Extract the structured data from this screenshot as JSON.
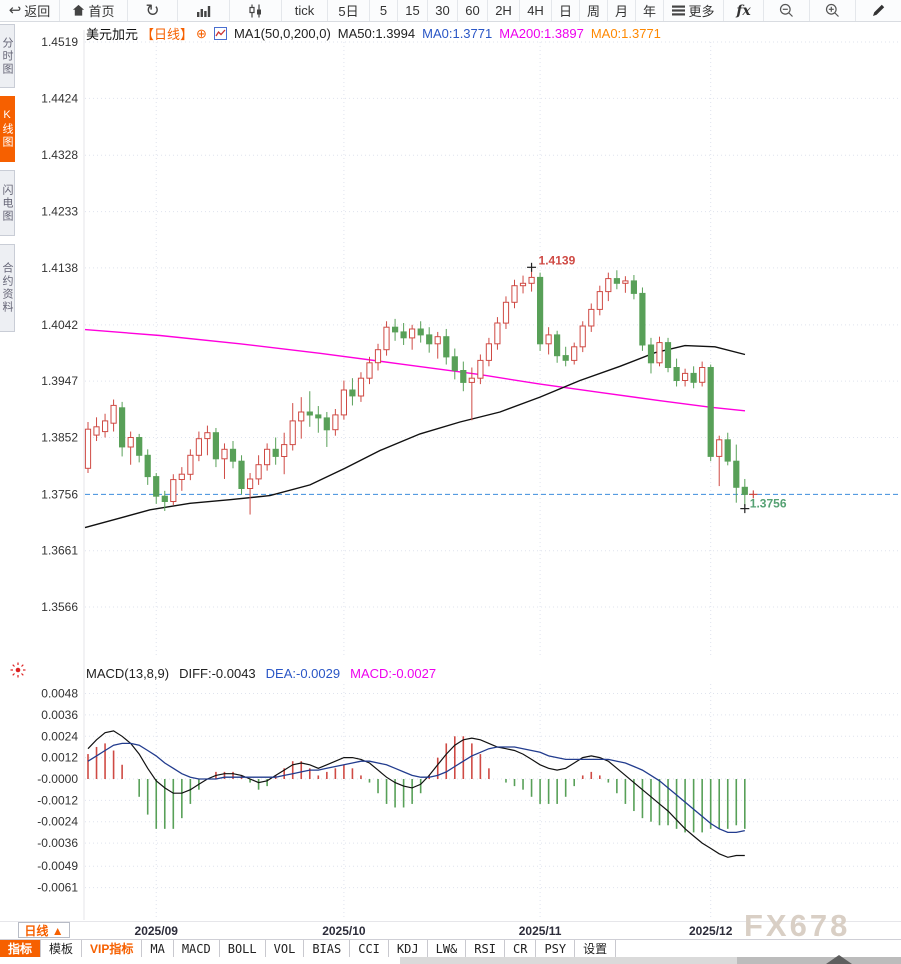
{
  "toolbar": {
    "items": [
      {
        "label": "返回",
        "icon": "back"
      },
      {
        "label": "首页",
        "icon": "home"
      },
      {
        "label": "",
        "icon": "refresh"
      },
      {
        "label": "",
        "icon": "bar-chart"
      },
      {
        "label": "",
        "icon": "candlestick"
      },
      {
        "label": "tick",
        "icon": ""
      },
      {
        "label": "5日",
        "icon": ""
      },
      {
        "label": "5",
        "icon": ""
      },
      {
        "label": "15",
        "icon": ""
      },
      {
        "label": "30",
        "icon": ""
      },
      {
        "label": "60",
        "icon": ""
      },
      {
        "label": "2H",
        "icon": ""
      },
      {
        "label": "4H",
        "icon": ""
      },
      {
        "label": "日",
        "icon": ""
      },
      {
        "label": "周",
        "icon": ""
      },
      {
        "label": "月",
        "icon": ""
      },
      {
        "label": "年",
        "icon": ""
      },
      {
        "label": "更多",
        "icon": "menu"
      },
      {
        "label": "fx",
        "icon": "fx"
      },
      {
        "label": "",
        "icon": "zoom-out"
      },
      {
        "label": "",
        "icon": "zoom-in"
      },
      {
        "label": "",
        "icon": "pencil"
      }
    ]
  },
  "sidebar": {
    "tabs": [
      {
        "label": "分时图",
        "active": false
      },
      {
        "label": "K线图",
        "active": true
      },
      {
        "label": "闪电图",
        "active": false
      },
      {
        "label": "合约资料",
        "active": false
      }
    ]
  },
  "chart_header": {
    "symbol": "美元加元",
    "period": "【日线】",
    "add_icon": "⊕",
    "ma_settings": "MA1(50,0,200,0)",
    "ma50": "MA50:1.3994",
    "ma0_blue": "MA0:1.3771",
    "ma200": "MA200:1.3897",
    "ma0_orange": "MA0:1.3771"
  },
  "macd_header": {
    "title": "MACD(13,8,9)",
    "diff": "DIFF:-0.0043",
    "dea": "DEA:-0.0029",
    "macd": "MACD:-0.0027"
  },
  "bottom_bar": {
    "period_label": "日线 ▲",
    "tabs": [
      "指标",
      "模板",
      "VIP指标",
      "MA",
      "MACD",
      "BOLL",
      "VOL",
      "BIAS",
      "CCI",
      "KDJ",
      "LW&",
      "RSI",
      "CR",
      "PSY",
      "设置"
    ]
  },
  "watermark": "FX678",
  "chart_data": {
    "type": "candlestick+macd",
    "symbol": "美元加元 (USD/CAD)",
    "period": "日线",
    "price_axis": [
      1.4519,
      1.4424,
      1.4328,
      1.4233,
      1.4138,
      1.4042,
      1.3947,
      1.3852,
      1.3756,
      1.3661,
      1.3566
    ],
    "macd_axis_labels": [
      "0.0048",
      "0.0036",
      "0.0024",
      "0.0012",
      "-0.0000",
      "-0.0012",
      "-0.0024",
      "-0.0036",
      "-0.0049",
      "-0.0061"
    ],
    "macd_axis_values": [
      0.0048,
      0.0036,
      0.0024,
      0.0012,
      0,
      -0.0012,
      -0.0024,
      -0.0036,
      -0.0049,
      -0.0061
    ],
    "x_ticks": [
      {
        "label": "2025/09",
        "index": 8
      },
      {
        "label": "2025/10",
        "index": 30
      },
      {
        "label": "2025/11",
        "index": 53
      },
      {
        "label": "2025/12",
        "index": 73
      }
    ],
    "candles": [
      [
        1.38,
        1.3878,
        1.3792,
        1.3866
      ],
      [
        1.3856,
        1.3886,
        1.3846,
        1.387
      ],
      [
        1.3862,
        1.3892,
        1.3852,
        1.388
      ],
      [
        1.3876,
        1.3916,
        1.3862,
        1.3906
      ],
      [
        1.3902,
        1.3912,
        1.382,
        1.3836
      ],
      [
        1.3836,
        1.3862,
        1.3806,
        1.3852
      ],
      [
        1.3852,
        1.3858,
        1.381,
        1.3822
      ],
      [
        1.3822,
        1.3832,
        1.3772,
        1.3786
      ],
      [
        1.3786,
        1.3792,
        1.374,
        1.3753
      ],
      [
        1.3753,
        1.3762,
        1.3728,
        1.3744
      ],
      [
        1.3744,
        1.379,
        1.3738,
        1.3781
      ],
      [
        1.3781,
        1.3802,
        1.3762,
        1.379
      ],
      [
        1.379,
        1.3832,
        1.378,
        1.3822
      ],
      [
        1.3822,
        1.3862,
        1.3812,
        1.385
      ],
      [
        1.385,
        1.3872,
        1.3822,
        1.386
      ],
      [
        1.386,
        1.3868,
        1.3802,
        1.3816
      ],
      [
        1.3816,
        1.3842,
        1.3782,
        1.3832
      ],
      [
        1.3832,
        1.3846,
        1.38,
        1.3812
      ],
      [
        1.3812,
        1.3822,
        1.3756,
        1.3766
      ],
      [
        1.3766,
        1.3792,
        1.3722,
        1.3782
      ],
      [
        1.3782,
        1.3822,
        1.3772,
        1.3806
      ],
      [
        1.3806,
        1.3842,
        1.3796,
        1.3832
      ],
      [
        1.3832,
        1.3852,
        1.3806,
        1.382
      ],
      [
        1.382,
        1.386,
        1.379,
        1.384
      ],
      [
        1.384,
        1.391,
        1.383,
        1.388
      ],
      [
        1.388,
        1.392,
        1.385,
        1.3895
      ],
      [
        1.3895,
        1.393,
        1.387,
        1.389
      ],
      [
        1.389,
        1.3905,
        1.386,
        1.3885
      ],
      [
        1.3885,
        1.3895,
        1.3836,
        1.3865
      ],
      [
        1.3865,
        1.39,
        1.3855,
        1.389
      ],
      [
        1.389,
        1.3948,
        1.3882,
        1.3932
      ],
      [
        1.3932,
        1.3952,
        1.3906,
        1.3922
      ],
      [
        1.3922,
        1.3962,
        1.3912,
        1.3952
      ],
      [
        1.3952,
        1.3988,
        1.3942,
        1.3978
      ],
      [
        1.3978,
        1.401,
        1.3965,
        1.4
      ],
      [
        1.4,
        1.4048,
        1.399,
        1.4038
      ],
      [
        1.4038,
        1.4052,
        1.4015,
        1.403
      ],
      [
        1.403,
        1.4045,
        1.4008,
        1.402
      ],
      [
        1.402,
        1.4042,
        1.4,
        1.4035
      ],
      [
        1.4035,
        1.4048,
        1.4012,
        1.4025
      ],
      [
        1.4025,
        1.4038,
        1.3995,
        1.401
      ],
      [
        1.401,
        1.403,
        1.3985,
        1.4022
      ],
      [
        1.4022,
        1.4035,
        1.3975,
        1.3988
      ],
      [
        1.3988,
        1.4002,
        1.395,
        1.3965
      ],
      [
        1.3965,
        1.398,
        1.393,
        1.3945
      ],
      [
        1.3945,
        1.397,
        1.3881,
        1.3952
      ],
      [
        1.3952,
        1.3992,
        1.3942,
        1.3982
      ],
      [
        1.3982,
        1.402,
        1.3972,
        1.401
      ],
      [
        1.401,
        1.4055,
        1.4,
        1.4045
      ],
      [
        1.4045,
        1.409,
        1.4035,
        1.408
      ],
      [
        1.408,
        1.4118,
        1.407,
        1.4108
      ],
      [
        1.4108,
        1.4125,
        1.4095,
        1.4112
      ],
      [
        1.4112,
        1.4139,
        1.4098,
        1.4122
      ],
      [
        1.4122,
        1.413,
        1.3998,
        1.401
      ],
      [
        1.401,
        1.4038,
        1.3992,
        1.4025
      ],
      [
        1.4025,
        1.4032,
        1.3978,
        1.399
      ],
      [
        1.399,
        1.4005,
        1.3972,
        1.3982
      ],
      [
        1.3982,
        1.4012,
        1.3975,
        1.4005
      ],
      [
        1.4005,
        1.4048,
        1.3996,
        1.404
      ],
      [
        1.404,
        1.4078,
        1.403,
        1.4068
      ],
      [
        1.4068,
        1.4108,
        1.4058,
        1.4098
      ],
      [
        1.4098,
        1.413,
        1.4082,
        1.412
      ],
      [
        1.412,
        1.4134,
        1.4102,
        1.4112
      ],
      [
        1.4112,
        1.4124,
        1.4096,
        1.4116
      ],
      [
        1.4116,
        1.4126,
        1.4085,
        1.4095
      ],
      [
        1.4095,
        1.4105,
        1.3998,
        1.4008
      ],
      [
        1.4008,
        1.402,
        1.396,
        1.3978
      ],
      [
        1.3978,
        1.4022,
        1.3972,
        1.4012
      ],
      [
        1.4012,
        1.402,
        1.3962,
        1.397
      ],
      [
        1.397,
        1.3985,
        1.3938,
        1.3948
      ],
      [
        1.3948,
        1.3968,
        1.3938,
        1.396
      ],
      [
        1.396,
        1.3972,
        1.3935,
        1.3945
      ],
      [
        1.3945,
        1.398,
        1.3938,
        1.397
      ],
      [
        1.397,
        1.3975,
        1.3812,
        1.382
      ],
      [
        1.382,
        1.3855,
        1.377,
        1.3848
      ],
      [
        1.3848,
        1.386,
        1.3805,
        1.3812
      ],
      [
        1.3812,
        1.384,
        1.3742,
        1.3768
      ],
      [
        1.3768,
        1.3782,
        1.3736,
        1.3756
      ]
    ],
    "ma50": [
      [
        85,
        1.37
      ],
      [
        120,
        1.3716
      ],
      [
        150,
        1.373
      ],
      [
        190,
        1.3741
      ],
      [
        230,
        1.3747
      ],
      [
        270,
        1.3754
      ],
      [
        310,
        1.3772
      ],
      [
        345,
        1.38
      ],
      [
        380,
        1.383
      ],
      [
        420,
        1.3858
      ],
      [
        460,
        1.3878
      ],
      [
        500,
        1.3895
      ],
      [
        540,
        1.392
      ],
      [
        580,
        1.3948
      ],
      [
        620,
        1.3972
      ],
      [
        655,
        1.3995
      ],
      [
        685,
        1.4007
      ],
      [
        715,
        1.4005
      ],
      [
        745,
        1.3992
      ]
    ],
    "ma200": [
      [
        85,
        1.4034
      ],
      [
        160,
        1.4024
      ],
      [
        240,
        1.401
      ],
      [
        320,
        1.3994
      ],
      [
        400,
        1.3976
      ],
      [
        480,
        1.3958
      ],
      [
        540,
        1.3942
      ],
      [
        600,
        1.3928
      ],
      [
        660,
        1.3914
      ],
      [
        710,
        1.3903
      ],
      [
        745,
        1.3897
      ]
    ],
    "macd": {
      "diff_1e4": [
        17,
        22,
        26,
        27,
        24,
        20,
        14,
        6,
        -1,
        -5,
        -8,
        -8,
        -6,
        -3,
        0,
        2,
        3,
        3,
        2,
        0,
        -2,
        -1,
        2,
        5,
        8,
        9,
        8,
        6,
        8,
        10,
        12,
        12,
        11,
        9,
        5,
        1,
        -2,
        -4,
        -5,
        -3,
        2,
        8,
        14,
        19,
        22,
        23,
        22,
        20,
        18,
        17,
        16,
        14,
        11,
        8,
        6,
        5,
        6,
        9,
        12,
        13,
        12,
        10,
        6,
        2,
        -2,
        -6,
        -10,
        -14,
        -18,
        -23,
        -28,
        -32,
        -36,
        -39,
        -42,
        -44,
        -43,
        -43
      ],
      "dea_1e4": [
        10,
        13,
        16,
        19,
        20,
        20,
        19,
        16,
        13,
        9,
        6,
        3,
        1,
        0,
        0,
        0,
        1,
        1,
        1,
        1,
        1,
        1,
        1,
        2,
        3,
        4,
        5,
        5,
        6,
        7,
        8,
        9,
        10,
        10,
        9,
        8,
        6,
        4,
        2,
        1,
        1,
        2,
        4,
        7,
        10,
        13,
        15,
        17,
        18,
        18,
        18,
        17,
        16,
        15,
        13,
        12,
        11,
        11,
        11,
        11,
        11,
        11,
        10,
        9,
        7,
        5,
        2,
        -1,
        -5,
        -9,
        -13,
        -17,
        -21,
        -25,
        -28,
        -30,
        -30,
        -29
      ]
    },
    "last_price": 1.3756,
    "annotations": {
      "high": {
        "index": 52,
        "price": 1.4139,
        "label": "1.4139"
      },
      "last": {
        "index": 77,
        "price": 1.3756,
        "label": "1.3756",
        "low_marker": 1.3732
      }
    },
    "colors": {
      "up": "#cf4a44",
      "down": "#58a058",
      "ma50": "#111111",
      "ma200": "#ff00dd",
      "diff": "#111111",
      "dea": "#223c8e",
      "last_line": "#3f8fdd",
      "grid": "#dfe3ee",
      "high_label": "#cf4a44",
      "last_label": "#55a173"
    }
  }
}
